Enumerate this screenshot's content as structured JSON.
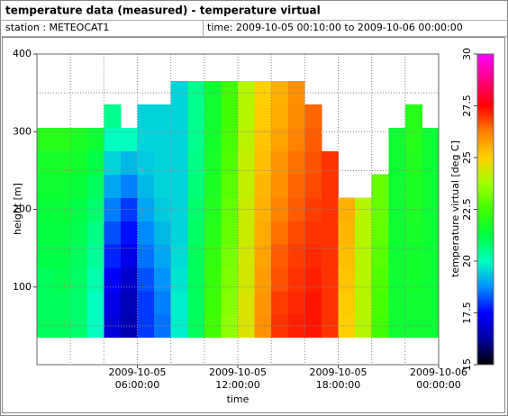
{
  "header": {
    "title": "temperature data (measured) - temperature virtual",
    "station": "station : METEOCAT1",
    "time_range": "time: 2009-10-05 00:10:00 to 2009-10-06 00:00:00"
  },
  "chart_data": {
    "type": "heatmap",
    "xlabel": "time",
    "ylabel": "height [m]",
    "colorbar_label": "temperature virtual [deg C]",
    "xlim": [
      "2009-10-05 00:00:00",
      "2009-10-06 00:00:00"
    ],
    "xticks": [
      {
        "value": "2009-10-05 06:00:00",
        "label": "2009-10-05\n06:00:00"
      },
      {
        "value": "2009-10-05 12:00:00",
        "label": "2009-10-05\n12:00:00"
      },
      {
        "value": "2009-10-05 18:00:00",
        "label": "2009-10-05\n18:00:00"
      },
      {
        "value": "2009-10-06 00:00:00",
        "label": "2009-10-06\n00:00:00"
      }
    ],
    "xminor": [
      "2009-10-05 02:00:00",
      "2009-10-05 04:00:00",
      "2009-10-05 08:00:00",
      "2009-10-05 10:00:00",
      "2009-10-05 14:00:00",
      "2009-10-05 16:00:00",
      "2009-10-05 20:00:00",
      "2009-10-05 22:00:00"
    ],
    "ylim": [
      0,
      400
    ],
    "yticks": [
      100,
      200,
      300,
      400
    ],
    "yminor": [
      50,
      150,
      250,
      350
    ],
    "zlim": [
      15,
      30
    ],
    "zticks": [
      15,
      17.5,
      20,
      22.5,
      25,
      27.5,
      30
    ],
    "colormap": [
      "#000000",
      "#0000a0",
      "#0000ff",
      "#0090ff",
      "#00ffc0",
      "#00ff40",
      "#40ff00",
      "#a0ff00",
      "#ffd000",
      "#ff8000",
      "#ff0000",
      "#ff0080",
      "#ff00ff"
    ],
    "grid": true,
    "x_bins": [
      "2009-10-05 00:00:00",
      "2009-10-05 01:00:00",
      "2009-10-05 02:00:00",
      "2009-10-05 03:00:00",
      "2009-10-05 04:00:00",
      "2009-10-05 05:00:00",
      "2009-10-05 06:00:00",
      "2009-10-05 07:00:00",
      "2009-10-05 08:00:00",
      "2009-10-05 09:00:00",
      "2009-10-05 10:00:00",
      "2009-10-05 11:00:00",
      "2009-10-05 12:00:00",
      "2009-10-05 13:00:00",
      "2009-10-05 14:00:00",
      "2009-10-05 15:00:00",
      "2009-10-05 16:00:00",
      "2009-10-05 17:00:00",
      "2009-10-05 18:00:00",
      "2009-10-05 19:00:00",
      "2009-10-05 20:00:00",
      "2009-10-05 21:00:00",
      "2009-10-05 22:00:00",
      "2009-10-05 23:00:00",
      "2009-10-06 00:00:00"
    ],
    "y_bins": [
      35,
      65,
      95,
      125,
      155,
      185,
      215,
      245,
      275,
      305,
      335,
      365
    ],
    "z": [
      [
        21,
        21,
        21,
        21.2,
        21.3,
        21.4,
        21.5,
        21.7,
        22,
        null,
        null
      ],
      [
        21,
        21,
        21.1,
        21.2,
        21.3,
        21.4,
        21.5,
        21.7,
        22,
        null,
        null
      ],
      [
        20.8,
        20.8,
        20.9,
        21,
        21.1,
        21.2,
        21.4,
        21.6,
        21.8,
        null,
        null
      ],
      [
        20,
        20,
        20.2,
        20.4,
        20.6,
        20.8,
        21,
        21.2,
        21.5,
        null,
        null
      ],
      [
        17,
        17.2,
        17.5,
        17.8,
        18.2,
        18.6,
        19,
        19.5,
        20,
        20.5,
        null
      ],
      [
        16.5,
        16.6,
        16.8,
        17.2,
        17.6,
        18,
        18.6,
        19.2,
        20,
        null,
        null
      ],
      [
        18,
        18,
        18.2,
        18.5,
        18.7,
        19,
        19.2,
        19.4,
        19.5,
        19.5,
        null
      ],
      [
        18.5,
        18.6,
        18.8,
        19,
        19.2,
        19.4,
        19.5,
        19.5,
        19.5,
        19.5,
        null
      ],
      [
        19.8,
        19.8,
        19.7,
        19.6,
        19.5,
        19.5,
        19.5,
        19.5,
        19.5,
        19.5,
        19.5
      ],
      [
        21,
        21,
        21,
        21,
        20.9,
        20.8,
        20.7,
        20.6,
        20.5,
        20.5,
        20.5
      ],
      [
        22.5,
        22.4,
        22.3,
        22.2,
        22,
        21.9,
        21.8,
        21.7,
        21.6,
        21.5,
        21.5
      ],
      [
        23.5,
        23.4,
        23.3,
        23.2,
        23,
        22.9,
        22.8,
        22.7,
        22.6,
        22.5,
        22.5
      ],
      [
        24.5,
        24.5,
        24.4,
        24.4,
        24.3,
        24.3,
        24.2,
        24.2,
        24.1,
        24,
        24
      ],
      [
        26,
        25.9,
        25.8,
        25.7,
        25.6,
        25.5,
        25.4,
        25.3,
        25.2,
        25.1,
        25
      ],
      [
        27,
        26.9,
        26.7,
        26.6,
        26.4,
        26.2,
        26,
        25.9,
        25.7,
        25.6,
        25.5
      ],
      [
        27.2,
        27.1,
        27,
        26.9,
        26.8,
        26.6,
        26.5,
        26.4,
        26.2,
        26.1,
        26
      ],
      [
        27.3,
        27.3,
        27.2,
        27.1,
        27,
        26.9,
        26.8,
        26.7,
        26.6,
        26.5,
        null
      ],
      [
        27,
        27,
        27,
        27,
        27,
        27,
        27,
        27,
        null,
        null,
        null
      ],
      [
        25,
        25.1,
        25.2,
        25.3,
        25.4,
        25.5,
        null,
        null,
        null,
        null,
        null
      ],
      [
        24,
        24,
        24,
        24,
        24,
        24,
        null,
        null,
        null,
        null,
        null
      ],
      [
        22.5,
        22.6,
        22.7,
        22.8,
        22.9,
        23,
        23,
        null,
        null,
        null,
        null
      ],
      [
        21.5,
        21.5,
        21.5,
        21.5,
        21.5,
        21.5,
        21.5,
        21.5,
        21.5,
        null,
        null
      ],
      [
        21.5,
        21.5,
        21.6,
        21.6,
        21.7,
        21.8,
        21.8,
        21.9,
        22,
        22,
        null
      ],
      [
        21.5,
        21.5,
        21.5,
        21.5,
        21.5,
        21.5,
        21.5,
        21.5,
        21.5,
        null,
        null
      ]
    ]
  }
}
